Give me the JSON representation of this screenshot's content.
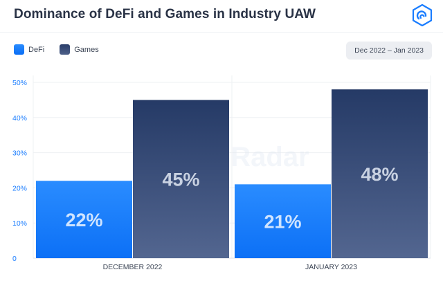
{
  "header": {
    "title": "Dominance of DeFi and Games in Industry UAW",
    "logo_icon": "dappradar-logo-icon"
  },
  "legend": {
    "items": [
      {
        "label": "DeFi",
        "color": "#1a7dff"
      },
      {
        "label": "Games",
        "color": "#2b3f6b"
      }
    ]
  },
  "date_range": "Dec 2022 – Jan 2023",
  "watermark": "DappRadar",
  "chart_data": {
    "type": "bar",
    "categories": [
      "DECEMBER 2022",
      "JANUARY 2023"
    ],
    "series": [
      {
        "name": "DeFi",
        "values": [
          22,
          21
        ],
        "labels": [
          "22%",
          "21%"
        ],
        "color": "#1a7dff"
      },
      {
        "name": "Games",
        "values": [
          45,
          48
        ],
        "labels": [
          "45%",
          "48%"
        ],
        "color": "#2b3f6b"
      }
    ],
    "ylim": [
      0,
      50
    ],
    "yticks": [
      0,
      10,
      20,
      30,
      40,
      50
    ],
    "ytick_labels": [
      "0",
      "10%",
      "20%",
      "30%",
      "40%",
      "50%"
    ],
    "grid": true,
    "legend_position": "top-left"
  }
}
